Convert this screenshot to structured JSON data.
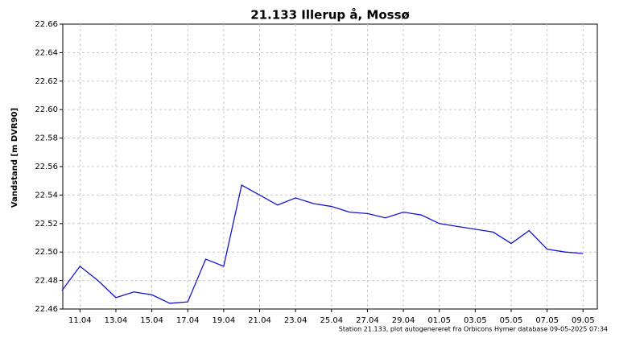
{
  "chart_data": {
    "type": "line",
    "title": "21.133  Illerup å, Mossø",
    "y_label": "Vandstand [m DVR90]",
    "footnote": "Station 21.133, plot autogenereret fra Orbicons Hymer database 09-05-2025 07:34",
    "x": [
      null,
      "11.04",
      null,
      "13.04",
      null,
      "15.04",
      null,
      "17.04",
      null,
      "19.04",
      null,
      "21.04",
      null,
      "23.04",
      null,
      "25.04",
      null,
      "27.04",
      null,
      "29.04",
      null,
      "01.05",
      null,
      "03.05",
      null,
      "05.05",
      null,
      "07.05",
      null,
      "09.05"
    ],
    "series": [
      {
        "color": "#1414d2",
        "values": [
          22.473,
          22.49,
          22.48,
          22.468,
          22.472,
          22.47,
          22.464,
          22.465,
          22.495,
          22.49,
          22.547,
          22.54,
          22.533,
          22.538,
          22.534,
          22.532,
          22.528,
          22.527,
          22.524,
          22.528,
          22.526,
          22.52,
          22.518,
          22.516,
          22.514,
          22.506,
          22.515,
          22.502,
          22.5,
          22.499
        ]
      }
    ],
    "ylim": [
      22.46,
      22.66
    ],
    "yticks": [
      22.46,
      22.48,
      {
        "value": 22.5,
        "label": "22.50"
      },
      22.52,
      22.54,
      22.56,
      22.58,
      {
        "value": 22.6,
        "label": "22.60"
      },
      22.62,
      22.64,
      22.66
    ],
    "grid": true
  }
}
